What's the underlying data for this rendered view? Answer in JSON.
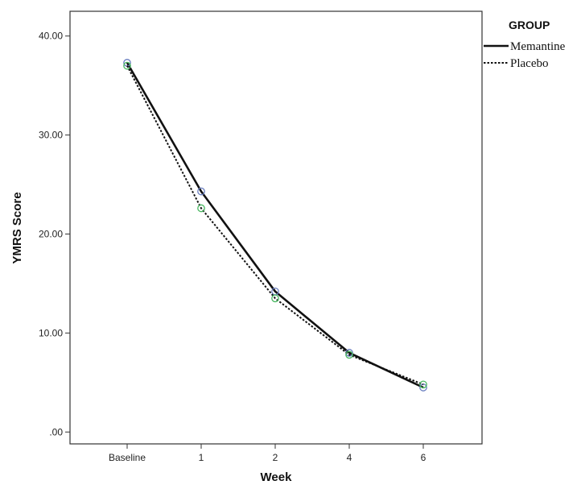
{
  "chart_data": {
    "type": "line",
    "title": "",
    "xlabel": "Week",
    "ylabel": "YMRS Score",
    "categories": [
      "Baseline",
      "1",
      "2",
      "4",
      "6"
    ],
    "yticks": [
      ".00",
      "10.00",
      "20.00",
      "30.00",
      "40.00"
    ],
    "ylim": [
      -1.2,
      42.5
    ],
    "grid": false,
    "legend": {
      "title": "GROUP",
      "placement": "right"
    },
    "series": [
      {
        "name": "Memantine",
        "values": [
          37.3,
          24.3,
          14.2,
          8.0,
          4.5
        ],
        "line_style": "solid",
        "marker_color": "#6a7fc0"
      },
      {
        "name": "Placebo",
        "values": [
          37.0,
          22.6,
          13.5,
          7.8,
          4.8
        ],
        "line_style": "dotted",
        "marker_color": "#4ab862"
      }
    ]
  }
}
